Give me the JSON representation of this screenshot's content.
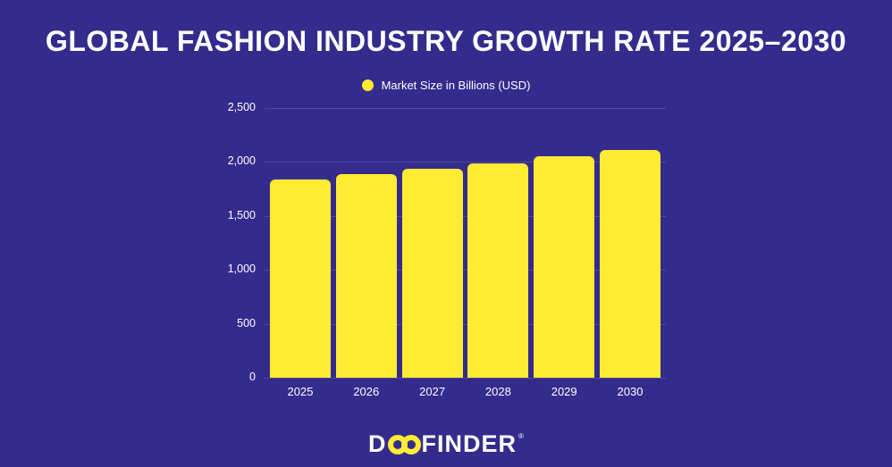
{
  "page": {
    "title": "GLOBAL FASHION INDUSTRY GROWTH RATE 2025–2030"
  },
  "colors": {
    "background": "#342b8c",
    "bar": "#ffeb33",
    "text": "#ffffff",
    "gridline": "rgba(255,255,255,0.14)"
  },
  "legend": {
    "label": "Market Size in Billions (USD)",
    "marker": "yellow-dot"
  },
  "chart_data": {
    "type": "bar",
    "title": "GLOBAL FASHION INDUSTRY GROWTH RATE 2025–2030",
    "series_name": "Market Size in Billions (USD)",
    "categories": [
      "2025",
      "2026",
      "2027",
      "2028",
      "2029",
      "2030"
    ],
    "values": [
      1840,
      1890,
      1940,
      1990,
      2050,
      2110
    ],
    "xlabel": "",
    "ylabel": "",
    "ylim": [
      0,
      2500
    ],
    "yticks": [
      2500,
      2000,
      1500,
      1000,
      500,
      0
    ],
    "ytick_labels": [
      "2,500",
      "2,000",
      "1,500",
      "1,000",
      "500",
      "0"
    ],
    "grid": true,
    "legend_position": "top",
    "bar_color": "#ffeb33"
  },
  "footer": {
    "logo": {
      "d": "D",
      "finder": "FINDER",
      "registered": "®",
      "brand": "DOOFINDER"
    }
  }
}
